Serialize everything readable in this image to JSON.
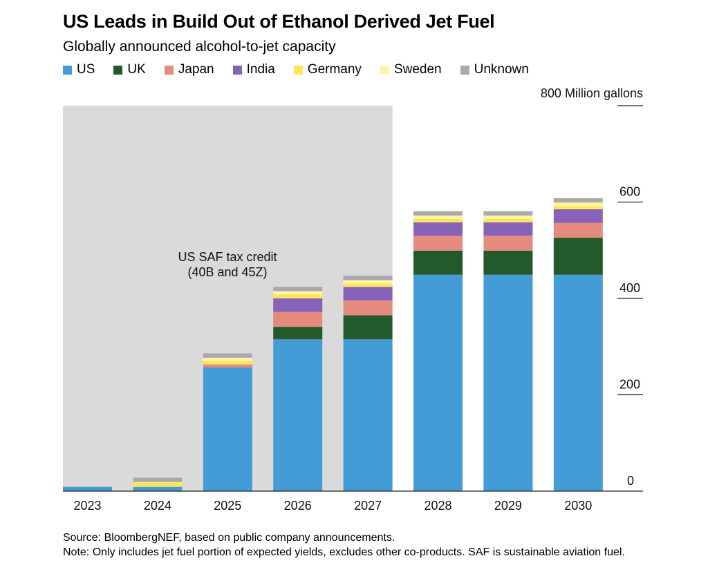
{
  "title": "US Leads in Build Out of Ethanol Derived Jet Fuel",
  "subtitle": "Globally announced alcohol-to-jet capacity",
  "chart_data": {
    "type": "bar",
    "stacked": true,
    "title": "US Leads in Build Out of Ethanol Derived Jet Fuel",
    "subtitle": "Globally announced alcohol-to-jet capacity",
    "unit_label": "800 Million gallons",
    "categories": [
      "2023",
      "2024",
      "2025",
      "2026",
      "2027",
      "2028",
      "2029",
      "2030"
    ],
    "series": [
      {
        "name": "US",
        "color": "#449cd6",
        "values": [
          9,
          9,
          257,
          315,
          315,
          449,
          449,
          449
        ]
      },
      {
        "name": "UK",
        "color": "#245a2b",
        "values": [
          0,
          0,
          0,
          26,
          50,
          50,
          50,
          77
        ]
      },
      {
        "name": "Japan",
        "color": "#e58a7c",
        "values": [
          0,
          0,
          6,
          31,
          31,
          31,
          31,
          31
        ]
      },
      {
        "name": "India",
        "color": "#8662b9",
        "values": [
          0,
          0,
          0,
          28,
          28,
          28,
          28,
          28
        ]
      },
      {
        "name": "Germany",
        "color": "#fde55a",
        "values": [
          0,
          9,
          7,
          8,
          7,
          7,
          7,
          7
        ]
      },
      {
        "name": "Sweden",
        "color": "#fef4a5",
        "values": [
          0,
          1,
          7,
          7,
          7,
          7,
          7,
          7
        ]
      },
      {
        "name": "Unknown",
        "color": "#a9a9a9",
        "values": [
          0,
          9,
          9,
          9,
          9,
          9,
          9,
          9
        ]
      }
    ],
    "ylim": [
      0,
      800
    ],
    "yticks": [
      0,
      200,
      400,
      600
    ],
    "grid": false,
    "legend_position": "top",
    "shaded_region": {
      "from": "2023",
      "to": "2027",
      "color": "#dadada",
      "label_line1": "US SAF tax credit",
      "label_line2": "(40B and 45Z)"
    }
  },
  "footer": {
    "source": "Source: BloombergNEF, based on public company announcements.",
    "note": "Note: Only includes jet fuel portion of expected yields, excludes other co-products. SAF is sustainable aviation fuel."
  }
}
